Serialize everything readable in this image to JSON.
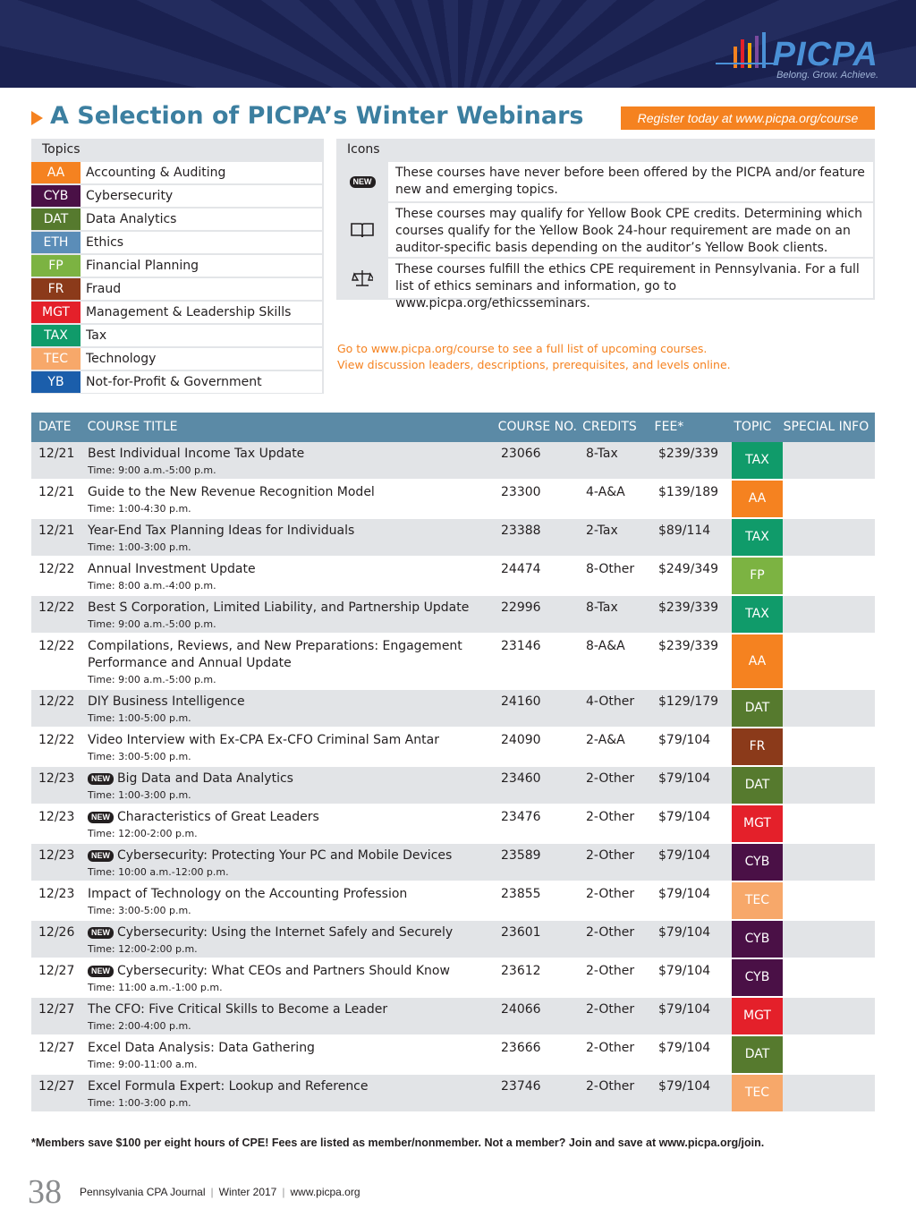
{
  "header": {
    "logo": "PICPA",
    "tagline": "Belong. Grow. Achieve."
  },
  "title": "A Selection of PICPA’s Winter Webinars",
  "register": "Register today at www.picpa.org/course",
  "topics": {
    "heading": "Topics",
    "items": [
      {
        "code": "AA",
        "name": "Accounting & Auditing",
        "color": "#f58220"
      },
      {
        "code": "CYB",
        "name": "Cybersecurity",
        "color": "#4a1046"
      },
      {
        "code": "DAT",
        "name": "Data Analytics",
        "color": "#567a2e"
      },
      {
        "code": "ETH",
        "name": "Ethics",
        "color": "#5b8db8"
      },
      {
        "code": "FP",
        "name": "Financial Planning",
        "color": "#7cb342"
      },
      {
        "code": "FR",
        "name": "Fraud",
        "color": "#8b3a1a"
      },
      {
        "code": "MGT",
        "name": "Management & Leadership Skills",
        "color": "#e4202a"
      },
      {
        "code": "TAX",
        "name": "Tax",
        "color": "#109b6a"
      },
      {
        "code": "TEC",
        "name": "Technology",
        "color": "#f7a86a"
      },
      {
        "code": "YB",
        "name": "Not-for-Profit & Government",
        "color": "#1b5eab"
      }
    ]
  },
  "icons": {
    "heading": "Icons",
    "items": [
      {
        "badge": "NEW",
        "text": "These courses have never before been offered by the PICPA and/or feature new and emerging topics."
      },
      {
        "text": "These courses may qualify for Yellow Book CPE credits. Determining which courses qualify for the Yellow Book 24-hour requirement are made on an auditor-specific basis depending on the auditor’s Yellow Book clients."
      },
      {
        "text": "These courses fulfill the ethics CPE requirement in Pennsylvania. For a full list of ethics seminars and information, go to www.picpa.org/ethicsseminars."
      }
    ]
  },
  "links": [
    "Go to www.picpa.org/course to see a full list of upcoming courses.",
    "View discussion leaders, descriptions, prerequisites, and levels online."
  ],
  "table": {
    "columns": [
      "DATE",
      "COURSE TITLE",
      "COURSE NO.",
      "CREDITS",
      "FEE*",
      "TOPIC",
      "SPECIAL INFO"
    ],
    "rows": [
      {
        "date": "12/21",
        "new": false,
        "title": "Best Individual Income Tax Update",
        "time": "Time: 9:00 a.m.-5:00 p.m.",
        "course_no": "23066",
        "credits": "8-Tax",
        "fee": "$239/339",
        "topic": "TAX"
      },
      {
        "date": "12/21",
        "new": false,
        "title": "Guide to the New Revenue Recognition Model",
        "time": "Time: 1:00-4:30 p.m.",
        "course_no": "23300",
        "credits": "4-A&A",
        "fee": "$139/189",
        "topic": "AA"
      },
      {
        "date": "12/21",
        "new": false,
        "title": "Year-End Tax Planning Ideas for Individuals",
        "time": "Time: 1:00-3:00 p.m.",
        "course_no": "23388",
        "credits": "2-Tax",
        "fee": "$89/114",
        "topic": "TAX"
      },
      {
        "date": "12/22",
        "new": false,
        "title": "Annual Investment Update",
        "time": "Time: 8:00 a.m.-4:00 p.m.",
        "course_no": "24474",
        "credits": "8-Other",
        "fee": "$249/349",
        "topic": "FP"
      },
      {
        "date": "12/22",
        "new": false,
        "title": "Best S Corporation, Limited Liability, and Partnership Update",
        "time": "Time: 9:00 a.m.-5:00 p.m.",
        "course_no": "22996",
        "credits": "8-Tax",
        "fee": "$239/339",
        "topic": "TAX"
      },
      {
        "date": "12/22",
        "new": false,
        "title": "Compilations, Reviews, and New Preparations: Engagement Performance and Annual Update",
        "time": "Time: 9:00 a.m.-5:00 p.m.",
        "course_no": "23146",
        "credits": "8-A&A",
        "fee": "$239/339",
        "topic": "AA"
      },
      {
        "date": "12/22",
        "new": false,
        "title": "DIY Business Intelligence",
        "time": "Time: 1:00-5:00 p.m.",
        "course_no": "24160",
        "credits": "4-Other",
        "fee": "$129/179",
        "topic": "DAT"
      },
      {
        "date": "12/22",
        "new": false,
        "title": "Video Interview with Ex-CPA Ex-CFO Criminal Sam Antar",
        "time": "Time: 3:00-5:00 p.m.",
        "course_no": "24090",
        "credits": "2-A&A",
        "fee": "$79/104",
        "topic": "FR"
      },
      {
        "date": "12/23",
        "new": true,
        "title": "Big Data and Data Analytics",
        "time": "Time: 1:00-3:00 p.m.",
        "course_no": "23460",
        "credits": "2-Other",
        "fee": "$79/104",
        "topic": "DAT"
      },
      {
        "date": "12/23",
        "new": true,
        "title": "Characteristics of Great Leaders",
        "time": "Time: 12:00-2:00 p.m.",
        "course_no": "23476",
        "credits": "2-Other",
        "fee": "$79/104",
        "topic": "MGT"
      },
      {
        "date": "12/23",
        "new": true,
        "title": "Cybersecurity: Protecting Your PC and Mobile Devices",
        "time": "Time: 10:00 a.m.-12:00 p.m.",
        "course_no": "23589",
        "credits": "2-Other",
        "fee": "$79/104",
        "topic": "CYB"
      },
      {
        "date": "12/23",
        "new": false,
        "title": "Impact of Technology on the Accounting Profession",
        "time": "Time: 3:00-5:00 p.m.",
        "course_no": "23855",
        "credits": "2-Other",
        "fee": "$79/104",
        "topic": "TEC"
      },
      {
        "date": "12/26",
        "new": true,
        "title": "Cybersecurity: Using the Internet Safely and Securely",
        "time": "Time: 12:00-2:00 p.m.",
        "course_no": "23601",
        "credits": "2-Other",
        "fee": "$79/104",
        "topic": "CYB"
      },
      {
        "date": "12/27",
        "new": true,
        "title": "Cybersecurity: What CEOs and Partners Should Know",
        "time": "Time: 11:00 a.m.-1:00 p.m.",
        "course_no": "23612",
        "credits": "2-Other",
        "fee": "$79/104",
        "topic": "CYB"
      },
      {
        "date": "12/27",
        "new": false,
        "title": "The CFO: Five Critical Skills to Become a Leader",
        "time": "Time: 2:00-4:00 p.m.",
        "course_no": "24066",
        "credits": "2-Other",
        "fee": "$79/104",
        "topic": "MGT"
      },
      {
        "date": "12/27",
        "new": false,
        "title": "Excel Data Analysis: Data Gathering",
        "time": "Time: 9:00-11:00 a.m.",
        "course_no": "23666",
        "credits": "2-Other",
        "fee": "$79/104",
        "topic": "DAT"
      },
      {
        "date": "12/27",
        "new": false,
        "title": "Excel Formula Expert: Lookup and Reference",
        "time": "Time: 1:00-3:00 p.m.",
        "course_no": "23746",
        "credits": "2-Other",
        "fee": "$79/104",
        "topic": "TEC"
      }
    ]
  },
  "footnote": "*Members save $100 per eight hours of CPE! Fees are listed as member/nonmember. Not a member? Join and save at www.picpa.org/join.",
  "footer": {
    "page": "38",
    "journal": "Pennsylvania CPA Journal",
    "issue": "Winter 2017",
    "site": "www.picpa.org"
  }
}
